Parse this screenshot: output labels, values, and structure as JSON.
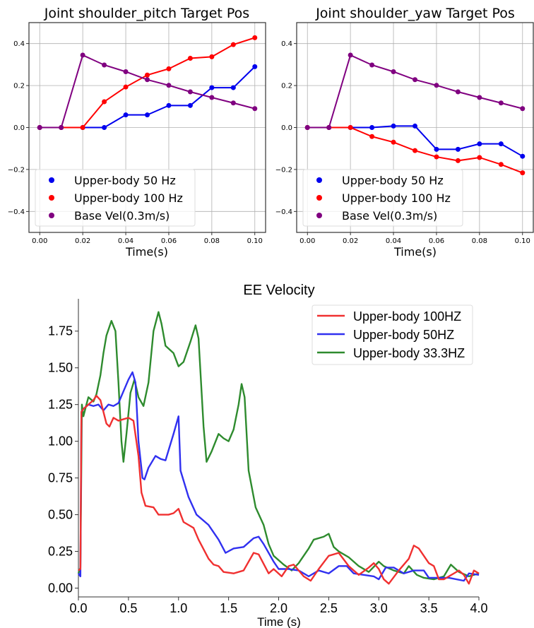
{
  "chart_data": [
    {
      "type": "line",
      "title": "Joint shoulder_pitch Target Pos",
      "xlabel": "Time(s)",
      "ylabel": "",
      "xlim": [
        -0.005,
        0.105
      ],
      "ylim": [
        -0.5,
        0.5
      ],
      "xticks": [
        "0.00",
        "0.02",
        "0.04",
        "0.06",
        "0.08",
        "0.10"
      ],
      "yticks": [
        "0.4",
        "0.2",
        "0.0",
        "−0.2",
        "−0.4"
      ],
      "grid": true,
      "markers": true,
      "legend_position": "lower-left",
      "x": [
        0,
        0.01,
        0.02,
        0.03,
        0.04,
        0.05,
        0.06,
        0.07,
        0.08,
        0.09,
        0.1
      ],
      "series": [
        {
          "name": "Upper-body 50 Hz",
          "color": "#0000ee",
          "values": [
            0,
            0,
            0,
            0,
            0.06,
            0.06,
            0.105,
            0.105,
            0.19,
            0.19,
            0.29
          ]
        },
        {
          "name": "Upper-body 100 Hz",
          "color": "#ff0000",
          "values": [
            0,
            0,
            0,
            0.123,
            0.193,
            0.25,
            0.28,
            0.33,
            0.337,
            0.395,
            0.428
          ]
        },
        {
          "name": "Base Vel(0.3m/s)",
          "color": "#800080",
          "values": [
            0,
            0,
            0.345,
            0.298,
            0.266,
            0.228,
            0.201,
            0.17,
            0.143,
            0.117,
            0.09
          ]
        }
      ]
    },
    {
      "type": "line",
      "title": "Joint shoulder_yaw Target Pos",
      "xlabel": "Time(s)",
      "ylabel": "",
      "xlim": [
        -0.005,
        0.105
      ],
      "ylim": [
        -0.5,
        0.5
      ],
      "xticks": [
        "0.00",
        "0.02",
        "0.04",
        "0.06",
        "0.08",
        "0.10"
      ],
      "yticks": [
        "0.4",
        "0.2",
        "0.0",
        "−0.2",
        "−0.4"
      ],
      "grid": true,
      "markers": true,
      "legend_position": "lower-left",
      "x": [
        0,
        0.01,
        0.02,
        0.03,
        0.04,
        0.05,
        0.06,
        0.07,
        0.08,
        0.09,
        0.1
      ],
      "series": [
        {
          "name": "Upper-body 50 Hz",
          "color": "#0000ee",
          "values": [
            0,
            0,
            0,
            0,
            0.007,
            0.007,
            -0.104,
            -0.104,
            -0.078,
            -0.078,
            -0.137
          ]
        },
        {
          "name": "Upper-body 100 Hz",
          "color": "#ff0000",
          "values": [
            0,
            0,
            0,
            -0.043,
            -0.07,
            -0.11,
            -0.14,
            -0.158,
            -0.143,
            -0.176,
            -0.216
          ]
        },
        {
          "name": "Base Vel(0.3m/s)",
          "color": "#800080",
          "values": [
            0,
            0,
            0.345,
            0.298,
            0.266,
            0.228,
            0.201,
            0.17,
            0.143,
            0.117,
            0.09
          ]
        }
      ]
    },
    {
      "type": "line",
      "title": "EE Velocity",
      "xlabel": "Time (s)",
      "ylabel": "",
      "xlim": [
        0,
        4.0
      ],
      "ylim": [
        -0.06,
        1.97
      ],
      "xticks": [
        "0.0",
        "0.5",
        "1.0",
        "1.5",
        "2.0",
        "2.5",
        "3.0",
        "3.5",
        "4.0"
      ],
      "yticks": [
        "0.00",
        "0.25",
        "0.50",
        "0.75",
        "1.00",
        "1.25",
        "1.50",
        "1.75"
      ],
      "grid": false,
      "markers": false,
      "legend_position": "top-right",
      "series": [
        {
          "name": "Upper-body 100HZ",
          "color": "#f03030",
          "x": [
            0,
            0.02,
            0.03,
            0.05,
            0.1,
            0.15,
            0.18,
            0.22,
            0.25,
            0.28,
            0.31,
            0.35,
            0.4,
            0.45,
            0.5,
            0.55,
            0.6,
            0.63,
            0.67,
            0.75,
            0.8,
            0.9,
            0.95,
            1.0,
            1.05,
            1.1,
            1.15,
            1.2,
            1.3,
            1.35,
            1.4,
            1.45,
            1.55,
            1.65,
            1.75,
            1.8,
            1.9,
            1.95,
            2.03,
            2.1,
            2.15,
            2.25,
            2.32,
            2.4,
            2.5,
            2.6,
            2.7,
            2.8,
            2.9,
            2.95,
            3.0,
            3.05,
            3.1,
            3.2,
            3.3,
            3.35,
            3.4,
            3.5,
            3.55,
            3.6,
            3.65,
            3.75,
            3.8,
            3.85,
            3.9,
            3.95,
            4.0
          ],
          "values": [
            0.12,
            0.13,
            1.2,
            1.22,
            1.25,
            1.28,
            1.31,
            1.28,
            1.2,
            1.12,
            1.1,
            1.16,
            1.14,
            1.15,
            1.16,
            1.14,
            0.9,
            0.65,
            0.56,
            0.55,
            0.5,
            0.5,
            0.51,
            0.54,
            0.45,
            0.43,
            0.41,
            0.33,
            0.2,
            0.16,
            0.15,
            0.11,
            0.1,
            0.12,
            0.24,
            0.23,
            0.1,
            0.13,
            0.08,
            0.15,
            0.16,
            0.08,
            0.05,
            0.13,
            0.22,
            0.24,
            0.15,
            0.09,
            0.14,
            0.17,
            0.13,
            0.06,
            0.03,
            0.12,
            0.2,
            0.29,
            0.27,
            0.17,
            0.15,
            0.06,
            0.06,
            0.1,
            0.12,
            0.09,
            0.03,
            0.12,
            0.1
          ]
        },
        {
          "name": "Upper-body 50HZ",
          "color": "#3030f0",
          "x": [
            0,
            0.02,
            0.03,
            0.05,
            0.1,
            0.15,
            0.2,
            0.25,
            0.3,
            0.35,
            0.4,
            0.45,
            0.5,
            0.54,
            0.57,
            0.6,
            0.64,
            0.66,
            0.7,
            0.77,
            0.82,
            0.87,
            0.95,
            1.0,
            1.02,
            1.1,
            1.18,
            1.3,
            1.4,
            1.47,
            1.55,
            1.65,
            1.75,
            1.8,
            1.85,
            1.95,
            2.0,
            2.1,
            2.2,
            2.3,
            2.4,
            2.5,
            2.6,
            2.68,
            2.75,
            2.85,
            2.95,
            3.0,
            3.07,
            3.15,
            3.25,
            3.35,
            3.45,
            3.5,
            3.6,
            3.7,
            3.85,
            3.9,
            4.0
          ],
          "values": [
            0.1,
            0.08,
            1.2,
            1.22,
            1.25,
            1.24,
            1.25,
            1.21,
            1.25,
            1.24,
            1.26,
            1.34,
            1.42,
            1.47,
            1.4,
            1.0,
            0.75,
            0.74,
            0.82,
            0.9,
            0.88,
            0.87,
            1.05,
            1.17,
            0.8,
            0.62,
            0.5,
            0.43,
            0.33,
            0.24,
            0.27,
            0.28,
            0.34,
            0.35,
            0.3,
            0.18,
            0.13,
            0.13,
            0.12,
            0.08,
            0.12,
            0.1,
            0.15,
            0.15,
            0.1,
            0.09,
            0.08,
            0.06,
            0.14,
            0.14,
            0.1,
            0.12,
            0.12,
            0.07,
            0.07,
            0.07,
            0.05,
            0.1,
            0.09
          ]
        },
        {
          "name": "Upper-body 33.3HZ",
          "color": "#2e8b2e",
          "x": [
            0,
            0.02,
            0.035,
            0.05,
            0.08,
            0.1,
            0.15,
            0.18,
            0.22,
            0.25,
            0.28,
            0.33,
            0.37,
            0.4,
            0.43,
            0.45,
            0.48,
            0.52,
            0.56,
            0.6,
            0.65,
            0.7,
            0.75,
            0.8,
            0.83,
            0.87,
            0.95,
            1.0,
            1.05,
            1.12,
            1.17,
            1.2,
            1.25,
            1.28,
            1.33,
            1.4,
            1.45,
            1.5,
            1.55,
            1.6,
            1.63,
            1.66,
            1.7,
            1.77,
            1.85,
            1.9,
            1.95,
            2.05,
            2.13,
            2.2,
            2.3,
            2.35,
            2.45,
            2.5,
            2.55,
            2.6,
            2.7,
            2.8,
            2.9,
            3.0,
            3.05,
            3.15,
            3.25,
            3.3,
            3.38,
            3.45,
            3.55,
            3.65,
            3.72,
            3.8,
            3.9,
            4.0
          ],
          "values": [
            0.1,
            0.14,
            1.25,
            1.17,
            1.25,
            1.3,
            1.27,
            1.32,
            1.45,
            1.6,
            1.72,
            1.82,
            1.75,
            1.4,
            1.0,
            0.86,
            1.05,
            1.33,
            1.42,
            1.3,
            1.24,
            1.4,
            1.75,
            1.88,
            1.8,
            1.65,
            1.6,
            1.51,
            1.54,
            1.68,
            1.79,
            1.7,
            1.1,
            0.86,
            0.93,
            1.05,
            1.02,
            1.0,
            1.08,
            1.25,
            1.39,
            1.3,
            0.8,
            0.55,
            0.43,
            0.3,
            0.22,
            0.16,
            0.12,
            0.17,
            0.27,
            0.33,
            0.35,
            0.37,
            0.28,
            0.25,
            0.21,
            0.15,
            0.11,
            0.18,
            0.15,
            0.12,
            0.1,
            0.15,
            0.09,
            0.07,
            0.06,
            0.08,
            0.16,
            0.11,
            0.08,
            0.1
          ]
        }
      ]
    }
  ]
}
